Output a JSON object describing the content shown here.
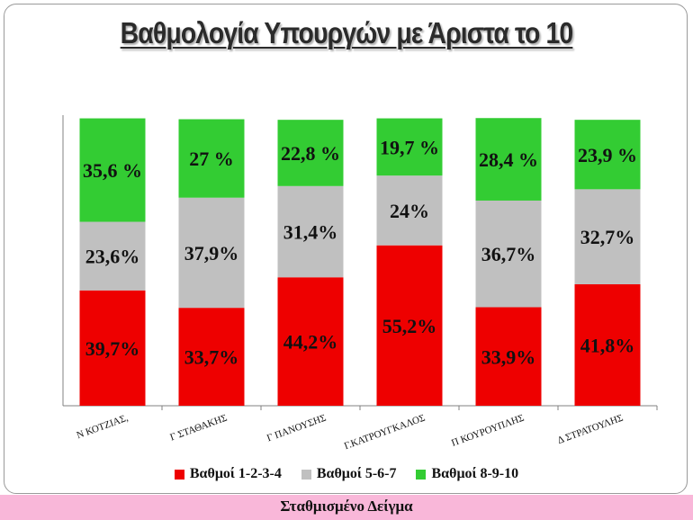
{
  "slide": {
    "title": "Βαθμολογία Υπουργών με Άριστα το 10",
    "footer": "Σταθμισμένο Δείγμα"
  },
  "colors": {
    "series_1": "#ee0000",
    "series_2": "#c0c0c0",
    "series_3": "#33cc33",
    "axis": "#808080"
  },
  "chart_data": {
    "type": "bar",
    "stacked": true,
    "categories": [
      "Ν ΚΟΤΖΙΑΣ,",
      "Γ ΣΤΑΘΑΚΗΣ",
      "Γ ΠΑΝΟΥΣΗΣ",
      "Γ.ΚΑΤΡΟΥΓΚΑΛΟΣ",
      "Π ΚΟΥΡΟΥΠΛΗΣ",
      "Δ ΣΤΡΑΤΟΥΛΗΣ"
    ],
    "ylim": [
      0,
      100
    ],
    "grid": false,
    "legend_position": "bottom",
    "series": [
      {
        "name": "Βαθμοί 1-2-3-4",
        "values": [
          39.7,
          33.7,
          44.2,
          55.2,
          33.9,
          41.8
        ],
        "labels": [
          "39,7%",
          "33,7%",
          "44,2%",
          "55,2%",
          "33,9%",
          "41,8%"
        ]
      },
      {
        "name": "Βαθμοί 5-6-7",
        "values": [
          23.6,
          37.9,
          31.4,
          24,
          36.7,
          32.7
        ],
        "labels": [
          "23,6%",
          "37,9%",
          "31,4%",
          "24%",
          "36,7%",
          "32,7%"
        ]
      },
      {
        "name": "Βαθμοί 8-9-10",
        "values": [
          35.6,
          27,
          22.8,
          19.7,
          28.4,
          23.9
        ],
        "labels": [
          "35,6 %",
          "27 %",
          "22,8 %",
          "19,7 %",
          "28,4 %",
          "23,9 %"
        ]
      }
    ]
  }
}
